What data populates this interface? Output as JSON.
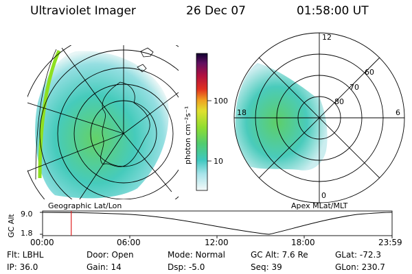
{
  "header": {
    "instrument": "Ultraviolet Imager",
    "date": "26 Dec 07",
    "time": "01:58:00 UT"
  },
  "colorbar": {
    "label": "photon cm⁻²s⁻¹",
    "ticks": [
      "100",
      "10"
    ]
  },
  "left_panel": {
    "caption": "Geographic Lat/Lon"
  },
  "right_panel": {
    "caption": "Apex MLat/MLT",
    "mlt_labels": [
      "12",
      "18",
      "6",
      "0"
    ],
    "mlat_labels": [
      "60",
      "70",
      "80"
    ]
  },
  "altitude_plot": {
    "ylabel": "GC Alt",
    "yticks": [
      "9.0",
      "1.8"
    ],
    "xticks": [
      "00:00",
      "06:00",
      "12:00",
      "18:00",
      "23:59"
    ],
    "marker_fraction": 0.082
  },
  "info": {
    "flt": "Flt: LBHL",
    "ip": "IP: 36.0",
    "door": "Door: Open",
    "gain": "Gain: 14",
    "mode": "Mode: Normal",
    "dsp": "Dsp:    -5.0",
    "gc_alt": "GC Alt: 7.6 Re",
    "seq": "Seq: 39",
    "glat": "GLat: -72.3",
    "glon": "GLon: 230.7"
  }
}
